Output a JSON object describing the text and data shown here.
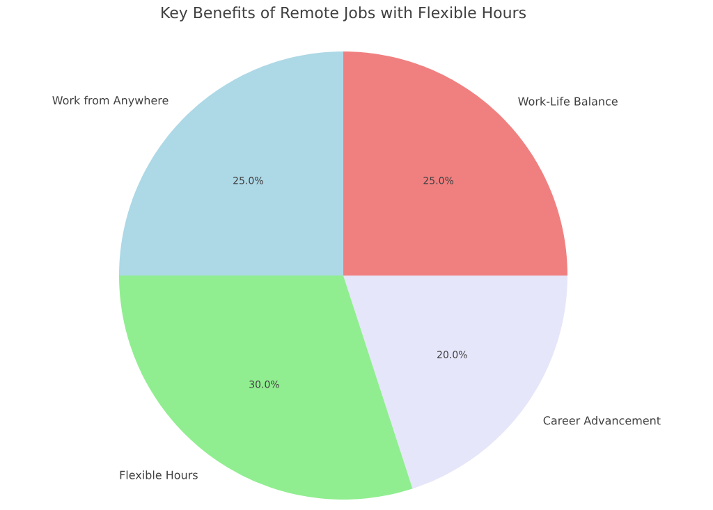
{
  "chart_data": {
    "type": "pie",
    "title": "Key Benefits of Remote Jobs with Flexible Hours",
    "categories": [
      "Work-Life Balance",
      "Career Advancement",
      "Flexible Hours",
      "Work from Anywhere"
    ],
    "values": [
      25,
      20,
      30,
      25
    ],
    "colors": [
      "#f08080",
      "#e6e6fa",
      "#90ee90",
      "#add8e6"
    ],
    "value_labels": [
      "25.0%",
      "20.0%",
      "30.0%",
      "25.0%"
    ]
  }
}
